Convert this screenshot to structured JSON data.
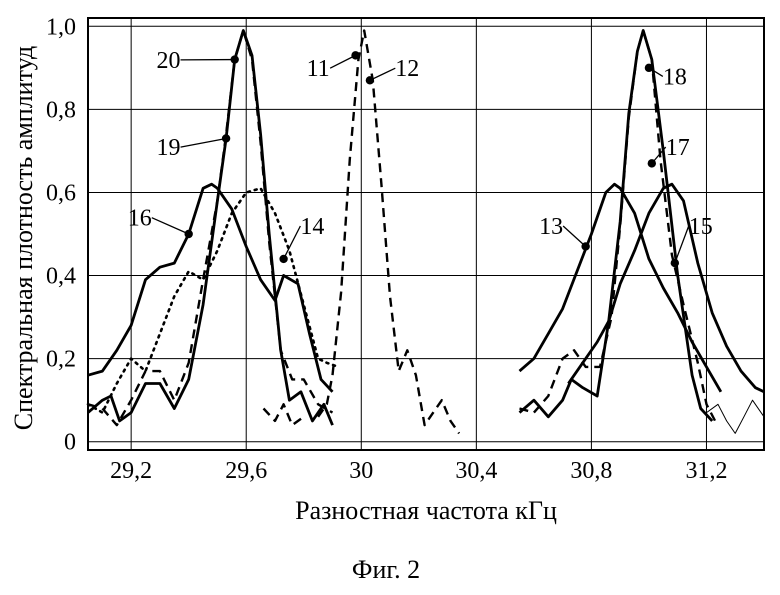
{
  "figure": {
    "caption": "Фиг. 2"
  },
  "chart_data": {
    "type": "line",
    "title": "",
    "xlabel": "Разностная частота кГц",
    "ylabel": "Спектральная плотность амплитуд",
    "xlim": [
      29.05,
      31.4
    ],
    "ylim": [
      -0.02,
      1.02
    ],
    "grid": true,
    "x_ticks": [
      29.2,
      29.6,
      30.0,
      30.4,
      30.8,
      31.2
    ],
    "x_tick_labels": [
      "29,2",
      "29,6",
      "30",
      "30,4",
      "30,8",
      "31,2"
    ],
    "y_ticks": [
      0,
      0.2,
      0.4,
      0.6,
      0.8,
      1.0
    ],
    "y_tick_labels": [
      "0",
      "0,2",
      "0,4",
      "0,6",
      "0,8",
      "1,0"
    ],
    "series": [
      {
        "id": "s16",
        "style": "solid",
        "stroke_width": 2.8,
        "points": [
          [
            29.05,
            0.16
          ],
          [
            29.1,
            0.17
          ],
          [
            29.15,
            0.22
          ],
          [
            29.2,
            0.28
          ],
          [
            29.25,
            0.39
          ],
          [
            29.3,
            0.42
          ],
          [
            29.35,
            0.43
          ],
          [
            29.4,
            0.5
          ],
          [
            29.45,
            0.61
          ],
          [
            29.48,
            0.62
          ],
          [
            29.5,
            0.61
          ],
          [
            29.55,
            0.56
          ],
          [
            29.6,
            0.47
          ],
          [
            29.65,
            0.39
          ],
          [
            29.7,
            0.34
          ],
          [
            29.73,
            0.4
          ],
          [
            29.78,
            0.38
          ],
          [
            29.82,
            0.26
          ],
          [
            29.86,
            0.15
          ],
          [
            29.9,
            0.12
          ]
        ]
      },
      {
        "id": "s20",
        "style": "solid",
        "stroke_width": 2.8,
        "points": [
          [
            29.05,
            0.07
          ],
          [
            29.1,
            0.1
          ],
          [
            29.13,
            0.11
          ],
          [
            29.16,
            0.05
          ],
          [
            29.2,
            0.07
          ],
          [
            29.25,
            0.14
          ],
          [
            29.3,
            0.14
          ],
          [
            29.35,
            0.08
          ],
          [
            29.4,
            0.15
          ],
          [
            29.45,
            0.33
          ],
          [
            29.5,
            0.58
          ],
          [
            29.53,
            0.73
          ],
          [
            29.56,
            0.92
          ],
          [
            29.59,
            0.99
          ],
          [
            29.62,
            0.93
          ],
          [
            29.65,
            0.74
          ],
          [
            29.68,
            0.5
          ],
          [
            29.72,
            0.22
          ],
          [
            29.75,
            0.1
          ],
          [
            29.79,
            0.12
          ],
          [
            29.83,
            0.05
          ],
          [
            29.87,
            0.09
          ],
          [
            29.9,
            0.04
          ]
        ]
      },
      {
        "id": "s19",
        "style": "dashed",
        "stroke_width": 2.4,
        "points": [
          [
            29.05,
            0.09
          ],
          [
            29.1,
            0.08
          ],
          [
            29.15,
            0.04
          ],
          [
            29.2,
            0.1
          ],
          [
            29.25,
            0.17
          ],
          [
            29.3,
            0.17
          ],
          [
            29.35,
            0.1
          ],
          [
            29.4,
            0.19
          ],
          [
            29.45,
            0.39
          ],
          [
            29.5,
            0.58
          ],
          [
            29.53,
            0.74
          ],
          [
            29.56,
            0.92
          ],
          [
            29.59,
            0.99
          ],
          [
            29.62,
            0.92
          ],
          [
            29.65,
            0.72
          ],
          [
            29.68,
            0.48
          ],
          [
            29.72,
            0.22
          ],
          [
            29.76,
            0.15
          ],
          [
            29.8,
            0.15
          ],
          [
            29.85,
            0.09
          ],
          [
            29.9,
            0.07
          ]
        ]
      },
      {
        "id": "s14",
        "style": "dotted",
        "stroke_width": 2.6,
        "points": [
          [
            29.05,
            0.09
          ],
          [
            29.1,
            0.07
          ],
          [
            29.15,
            0.14
          ],
          [
            29.2,
            0.2
          ],
          [
            29.25,
            0.17
          ],
          [
            29.3,
            0.26
          ],
          [
            29.35,
            0.35
          ],
          [
            29.4,
            0.41
          ],
          [
            29.45,
            0.39
          ],
          [
            29.5,
            0.46
          ],
          [
            29.55,
            0.55
          ],
          [
            29.6,
            0.6
          ],
          [
            29.65,
            0.61
          ],
          [
            29.7,
            0.55
          ],
          [
            29.75,
            0.46
          ],
          [
            29.8,
            0.33
          ],
          [
            29.85,
            0.2
          ],
          [
            29.88,
            0.19
          ],
          [
            29.92,
            0.18
          ]
        ]
      },
      {
        "id": "s11_12",
        "style": "dashed",
        "stroke_width": 2.4,
        "points": [
          [
            29.85,
            0.06
          ],
          [
            29.88,
            0.09
          ],
          [
            29.9,
            0.16
          ],
          [
            29.93,
            0.36
          ],
          [
            29.96,
            0.68
          ],
          [
            29.99,
            0.92
          ],
          [
            30.01,
            0.99
          ],
          [
            30.04,
            0.87
          ],
          [
            30.07,
            0.62
          ],
          [
            30.1,
            0.35
          ],
          [
            30.13,
            0.17
          ],
          [
            30.16,
            0.22
          ],
          [
            30.19,
            0.16
          ],
          [
            30.22,
            0.04
          ],
          [
            30.25,
            0.07
          ],
          [
            30.28,
            0.1
          ],
          [
            30.31,
            0.05
          ],
          [
            30.34,
            0.02
          ]
        ]
      },
      {
        "id": "s11_12_left",
        "style": "dashed",
        "stroke_width": 2.4,
        "points": [
          [
            29.66,
            0.08
          ],
          [
            29.7,
            0.05
          ],
          [
            29.73,
            0.09
          ],
          [
            29.76,
            0.04
          ],
          [
            29.8,
            0.06
          ]
        ]
      },
      {
        "id": "s13",
        "style": "solid",
        "stroke_width": 2.8,
        "points": [
          [
            30.55,
            0.17
          ],
          [
            30.6,
            0.2
          ],
          [
            30.65,
            0.26
          ],
          [
            30.7,
            0.32
          ],
          [
            30.75,
            0.41
          ],
          [
            30.8,
            0.5
          ],
          [
            30.85,
            0.6
          ],
          [
            30.88,
            0.62
          ],
          [
            30.9,
            0.61
          ],
          [
            30.95,
            0.55
          ],
          [
            31.0,
            0.44
          ],
          [
            31.05,
            0.37
          ],
          [
            31.1,
            0.31
          ],
          [
            31.15,
            0.24
          ],
          [
            31.2,
            0.18
          ],
          [
            31.25,
            0.12
          ]
        ]
      },
      {
        "id": "s15",
        "style": "solid",
        "stroke_width": 2.8,
        "points": [
          [
            30.72,
            0.14
          ],
          [
            30.78,
            0.2
          ],
          [
            30.82,
            0.24
          ],
          [
            30.86,
            0.29
          ],
          [
            30.9,
            0.38
          ],
          [
            30.95,
            0.46
          ],
          [
            31.0,
            0.55
          ],
          [
            31.05,
            0.61
          ],
          [
            31.08,
            0.62
          ],
          [
            31.12,
            0.58
          ],
          [
            31.17,
            0.43
          ],
          [
            31.22,
            0.31
          ],
          [
            31.27,
            0.23
          ],
          [
            31.32,
            0.17
          ],
          [
            31.37,
            0.13
          ],
          [
            31.4,
            0.12
          ]
        ]
      },
      {
        "id": "s18",
        "style": "solid",
        "stroke_width": 2.8,
        "points": [
          [
            30.55,
            0.07
          ],
          [
            30.6,
            0.1
          ],
          [
            30.65,
            0.06
          ],
          [
            30.7,
            0.1
          ],
          [
            30.73,
            0.15
          ],
          [
            30.77,
            0.13
          ],
          [
            30.82,
            0.11
          ],
          [
            30.86,
            0.29
          ],
          [
            30.9,
            0.53
          ],
          [
            30.93,
            0.79
          ],
          [
            30.96,
            0.94
          ],
          [
            30.98,
            0.99
          ],
          [
            31.01,
            0.92
          ],
          [
            31.05,
            0.7
          ],
          [
            31.1,
            0.4
          ],
          [
            31.15,
            0.16
          ],
          [
            31.18,
            0.08
          ],
          [
            31.22,
            0.05
          ]
        ]
      },
      {
        "id": "s17",
        "style": "dashed",
        "stroke_width": 2.4,
        "points": [
          [
            30.55,
            0.08
          ],
          [
            30.6,
            0.07
          ],
          [
            30.65,
            0.11
          ],
          [
            30.7,
            0.2
          ],
          [
            30.74,
            0.22
          ],
          [
            30.78,
            0.18
          ],
          [
            30.83,
            0.18
          ],
          [
            30.87,
            0.3
          ],
          [
            30.9,
            0.52
          ],
          [
            30.93,
            0.78
          ],
          [
            30.96,
            0.94
          ],
          [
            30.98,
            0.99
          ],
          [
            31.01,
            0.92
          ],
          [
            31.04,
            0.68
          ],
          [
            31.08,
            0.45
          ],
          [
            31.12,
            0.33
          ],
          [
            31.17,
            0.19
          ],
          [
            31.2,
            0.09
          ],
          [
            31.23,
            0.05
          ]
        ]
      },
      {
        "id": "thin_tail",
        "style": "thin",
        "stroke_width": 1.0,
        "points": [
          [
            31.2,
            0.07
          ],
          [
            31.24,
            0.09
          ],
          [
            31.27,
            0.05
          ],
          [
            31.3,
            0.02
          ],
          [
            31.33,
            0.06
          ],
          [
            31.36,
            0.1
          ],
          [
            31.4,
            0.06
          ]
        ]
      }
    ],
    "markers": [
      {
        "label": "20",
        "x": 29.56,
        "y": 0.92,
        "tx": 29.33,
        "ty": 0.9
      },
      {
        "label": "19",
        "x": 29.53,
        "y": 0.73,
        "tx": 29.33,
        "ty": 0.69
      },
      {
        "label": "16",
        "x": 29.4,
        "y": 0.5,
        "tx": 29.23,
        "ty": 0.52
      },
      {
        "label": "14",
        "x": 29.73,
        "y": 0.44,
        "tx": 29.83,
        "ty": 0.5
      },
      {
        "label": "11",
        "x": 29.98,
        "y": 0.93,
        "tx": 29.85,
        "ty": 0.88
      },
      {
        "label": "12",
        "x": 30.03,
        "y": 0.87,
        "tx": 30.16,
        "ty": 0.88
      },
      {
        "label": "18",
        "x": 31.0,
        "y": 0.9,
        "tx": 31.09,
        "ty": 0.86
      },
      {
        "label": "17",
        "x": 31.01,
        "y": 0.67,
        "tx": 31.1,
        "ty": 0.69
      },
      {
        "label": "13",
        "x": 30.78,
        "y": 0.47,
        "tx": 30.66,
        "ty": 0.5
      },
      {
        "label": "15",
        "x": 31.09,
        "y": 0.43,
        "tx": 31.18,
        "ty": 0.5
      }
    ]
  }
}
